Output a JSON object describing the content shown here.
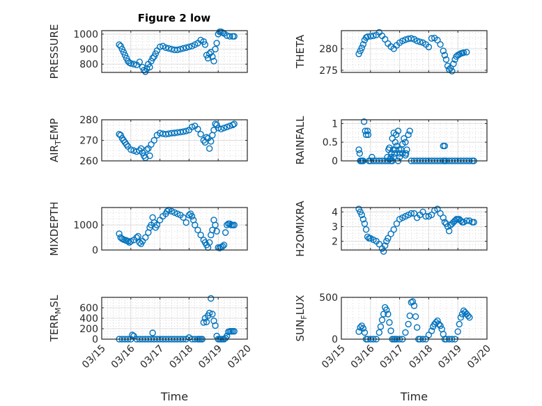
{
  "figure": {
    "title": "Figure 2 low",
    "marker_color": "#0072BD",
    "axis_color": "#262626",
    "grid_color": "#d9d9d9"
  },
  "chart_data": [
    {
      "type": "scatter",
      "id": "pressure",
      "title": "Figure 2 low",
      "ylabel": "PRESSURE",
      "xlabel": "",
      "xlim": [
        0,
        5
      ],
      "ylim": [
        745,
        1023
      ],
      "yticks": [
        800,
        900,
        1000
      ],
      "xticks": [
        "03/15",
        "03/16",
        "03/17",
        "03/18",
        "03/19",
        "03/20"
      ],
      "show_xticklabels": false,
      "grid": "major+minor",
      "x": [
        0.6,
        0.65,
        0.7,
        0.75,
        0.8,
        0.85,
        0.9,
        0.95,
        1.0,
        1.1,
        1.2,
        1.3,
        1.4,
        1.45,
        1.5,
        1.55,
        1.6,
        1.65,
        1.7,
        1.75,
        1.8,
        1.85,
        1.9,
        2.0,
        2.1,
        2.2,
        2.3,
        2.4,
        2.5,
        2.6,
        2.7,
        2.8,
        2.9,
        3.0,
        3.1,
        3.2,
        3.3,
        3.4,
        3.5,
        3.55,
        3.6,
        3.65,
        3.7,
        3.75,
        3.8,
        3.85,
        3.9,
        3.95,
        4.0,
        4.05,
        4.1,
        4.15,
        4.2,
        4.3,
        4.4,
        4.5,
        4.55
      ],
      "y": [
        930,
        920,
        900,
        880,
        860,
        840,
        820,
        810,
        805,
        800,
        795,
        815,
        780,
        760,
        750,
        770,
        800,
        780,
        820,
        840,
        850,
        870,
        890,
        915,
        920,
        910,
        905,
        900,
        895,
        895,
        900,
        905,
        910,
        915,
        920,
        930,
        940,
        960,
        950,
        930,
        860,
        840,
        870,
        880,
        850,
        820,
        900,
        940,
        1000,
        1015,
        1015,
        1010,
        1005,
        990,
        985,
        985,
        985
      ]
    },
    {
      "type": "scatter",
      "id": "theta",
      "ylabel": "THETA",
      "xlabel": "",
      "xlim": [
        0,
        5
      ],
      "ylim": [
        274.5,
        284.2
      ],
      "yticks": [
        275,
        280
      ],
      "xticks": [
        "03/15",
        "03/16",
        "03/17",
        "03/18",
        "03/19",
        "03/20"
      ],
      "show_xticklabels": false,
      "grid": "major+minor",
      "x": [
        0.6,
        0.65,
        0.7,
        0.75,
        0.8,
        0.85,
        0.9,
        1.0,
        1.1,
        1.2,
        1.3,
        1.4,
        1.5,
        1.6,
        1.7,
        1.8,
        1.9,
        2.0,
        2.1,
        2.2,
        2.3,
        2.4,
        2.5,
        2.6,
        2.7,
        2.8,
        2.9,
        3.0,
        3.1,
        3.2,
        3.3,
        3.4,
        3.5,
        3.55,
        3.6,
        3.65,
        3.7,
        3.75,
        3.8,
        3.85,
        3.9,
        3.95,
        4.0,
        4.05,
        4.1,
        4.15,
        4.2,
        4.3
      ],
      "y": [
        278.8,
        279.5,
        280.2,
        281,
        282,
        282.6,
        282.8,
        282.9,
        283.0,
        283.2,
        283.8,
        283.0,
        282.2,
        281.2,
        280.5,
        280.0,
        280.8,
        281.4,
        281.8,
        282.1,
        282.3,
        282.4,
        282.2,
        281.8,
        281.6,
        281.4,
        281.0,
        280.4,
        282.4,
        282.5,
        282.0,
        281.0,
        279.5,
        278.5,
        277.5,
        276.0,
        275.2,
        275.5,
        274.8,
        276.5,
        277.5,
        278.2,
        278.5,
        278.7,
        278.9,
        279.0,
        279.1,
        279.2
      ]
    },
    {
      "type": "scatter",
      "id": "air_temp",
      "ylabel": "AIR_TEMP",
      "xlabel": "",
      "xlim": [
        0,
        5
      ],
      "ylim": [
        260,
        280
      ],
      "yticks": [
        260,
        270,
        280
      ],
      "xticks": [
        "03/15",
        "03/16",
        "03/17",
        "03/18",
        "03/19",
        "03/20"
      ],
      "show_xticklabels": false,
      "grid": "major+minor",
      "x": [
        0.6,
        0.65,
        0.7,
        0.75,
        0.8,
        0.85,
        0.9,
        1.0,
        1.1,
        1.2,
        1.3,
        1.35,
        1.4,
        1.45,
        1.5,
        1.55,
        1.6,
        1.65,
        1.7,
        1.8,
        1.9,
        2.0,
        2.1,
        2.2,
        2.3,
        2.4,
        2.5,
        2.6,
        2.7,
        2.8,
        2.9,
        3.0,
        3.1,
        3.2,
        3.3,
        3.4,
        3.5,
        3.55,
        3.6,
        3.65,
        3.7,
        3.75,
        3.8,
        3.85,
        3.9,
        3.95,
        4.0,
        4.1,
        4.2,
        4.3,
        4.4,
        4.5,
        4.55
      ],
      "y": [
        273,
        272.5,
        271,
        270,
        269,
        268,
        267,
        265.5,
        265,
        264.5,
        265,
        266,
        264,
        262.5,
        261.5,
        265.5,
        266,
        262.5,
        268,
        270,
        272.5,
        273.5,
        273.2,
        273,
        273.2,
        273.5,
        273.6,
        273.8,
        274,
        274.2,
        274.5,
        275,
        276.5,
        277,
        275.5,
        273,
        270,
        269,
        271.5,
        271,
        266,
        269.5,
        272.5,
        275,
        278,
        277.5,
        276,
        275.5,
        276,
        276.5,
        277,
        277.5,
        278
      ]
    },
    {
      "type": "scatter",
      "id": "rainfall",
      "ylabel": "RAINFALL",
      "xlabel": "",
      "xlim": [
        0,
        5
      ],
      "ylim": [
        0,
        1.1
      ],
      "yticks": [
        0,
        0.5,
        1
      ],
      "xticks": [
        "03/15",
        "03/16",
        "03/17",
        "03/18",
        "03/19",
        "03/20"
      ],
      "show_xticklabels": false,
      "grid": "major+minor",
      "x": [
        0.6,
        0.63,
        0.65,
        0.68,
        0.72,
        0.75,
        0.78,
        0.82,
        0.85,
        0.9,
        0.92,
        0.95,
        1.0,
        1.05,
        1.1,
        1.2,
        1.3,
        1.4,
        1.5,
        1.6,
        1.7,
        1.75,
        1.8,
        1.85,
        1.9,
        1.95,
        2.0,
        2.05,
        2.1,
        2.15,
        2.2,
        2.25,
        2.3,
        2.35,
        2.4,
        2.5,
        2.6,
        2.7,
        2.8,
        2.9,
        3.0,
        3.1,
        3.2,
        3.3,
        3.4,
        3.5,
        3.55,
        3.6,
        3.7,
        3.8,
        3.9,
        4.0,
        4.1,
        4.2,
        4.3,
        4.4,
        4.5,
        4.55,
        1.58,
        1.62,
        1.65,
        1.68,
        1.7,
        1.72,
        1.75,
        1.78,
        1.8,
        1.83,
        1.85,
        1.88,
        1.95,
        1.98,
        2.0,
        2.1,
        2.2,
        2.22,
        3.5,
        3.55
      ],
      "y": [
        0.3,
        0.2,
        0,
        0,
        0,
        0,
        1.05,
        0.8,
        0.7,
        0.8,
        0.7,
        0,
        0,
        0.1,
        0,
        0,
        0,
        0,
        0,
        0,
        0.1,
        0,
        0.1,
        0.3,
        0.4,
        0,
        0.1,
        0.3,
        0.45,
        0.6,
        0.5,
        0.3,
        0.7,
        0.8,
        0,
        0,
        0,
        0,
        0,
        0,
        0,
        0,
        0,
        0,
        0,
        0,
        0,
        0,
        0,
        0,
        0,
        0,
        0,
        0,
        0,
        0,
        0,
        0,
        0.1,
        0.3,
        0.35,
        0.05,
        0,
        0.2,
        0.6,
        0.3,
        0.75,
        0.2,
        0.5,
        0.7,
        0.8,
        0.3,
        0.2,
        0.2,
        0.15,
        0.2,
        0.4,
        0.4
      ]
    },
    {
      "type": "scatter",
      "id": "mixdepth",
      "ylabel": "MIXDEPTH",
      "xlabel": "",
      "xlim": [
        0,
        5
      ],
      "ylim": [
        0,
        1700
      ],
      "yticks": [
        0,
        1000
      ],
      "xticks": [
        "03/15",
        "03/16",
        "03/17",
        "03/18",
        "03/19",
        "03/20"
      ],
      "show_xticklabels": false,
      "grid": "major+minor",
      "x": [
        0.6,
        0.65,
        0.7,
        0.75,
        0.8,
        0.85,
        0.9,
        0.95,
        1.0,
        1.1,
        1.2,
        1.25,
        1.3,
        1.35,
        1.4,
        1.5,
        1.6,
        1.65,
        1.7,
        1.75,
        1.8,
        1.85,
        1.9,
        2.0,
        2.1,
        2.2,
        2.25,
        2.3,
        2.4,
        2.5,
        2.6,
        2.7,
        2.8,
        2.9,
        3.0,
        3.05,
        3.1,
        3.15,
        3.2,
        3.3,
        3.4,
        3.5,
        3.55,
        3.6,
        3.65,
        3.7,
        3.75,
        3.8,
        3.85,
        3.9,
        3.95,
        4.0,
        4.05,
        4.1,
        4.15,
        4.2,
        4.25,
        4.3,
        4.35,
        4.4,
        4.45,
        4.5,
        4.55
      ],
      "y": [
        650,
        500,
        450,
        420,
        400,
        380,
        350,
        300,
        350,
        400,
        500,
        550,
        300,
        250,
        350,
        500,
        700,
        900,
        1000,
        1300,
        1100,
        900,
        1000,
        1200,
        1350,
        1450,
        1550,
        1600,
        1550,
        1500,
        1450,
        1400,
        1300,
        1100,
        1400,
        1450,
        1350,
        1200,
        1000,
        800,
        600,
        400,
        300,
        200,
        100,
        300,
        600,
        800,
        1200,
        1000,
        750,
        100,
        80,
        120,
        150,
        200,
        700,
        1000,
        1050,
        1050,
        1000,
        1000,
        1000
      ]
    },
    {
      "type": "scatter",
      "id": "h2omixra",
      "ylabel": "H2OMIXRA",
      "xlabel": "",
      "xlim": [
        0,
        5
      ],
      "ylim": [
        1.4,
        4.3
      ],
      "yticks": [
        2,
        3,
        4
      ],
      "xticks": [
        "03/15",
        "03/16",
        "03/17",
        "03/18",
        "03/19",
        "03/20"
      ],
      "show_xticklabels": false,
      "grid": "major+minor",
      "x": [
        0.6,
        0.65,
        0.7,
        0.75,
        0.8,
        0.85,
        0.9,
        0.95,
        1.0,
        1.1,
        1.2,
        1.3,
        1.4,
        1.45,
        1.5,
        1.55,
        1.6,
        1.7,
        1.8,
        1.9,
        2.0,
        2.1,
        2.2,
        2.3,
        2.4,
        2.5,
        2.6,
        2.7,
        2.8,
        2.9,
        3.0,
        3.1,
        3.2,
        3.3,
        3.4,
        3.5,
        3.55,
        3.6,
        3.65,
        3.7,
        3.75,
        3.8,
        3.85,
        3.9,
        3.95,
        4.0,
        4.05,
        4.1,
        4.15,
        4.2,
        4.3,
        4.4,
        4.5,
        4.55
      ],
      "y": [
        4.2,
        4.0,
        3.8,
        3.5,
        3.2,
        2.8,
        2.3,
        2.2,
        2.2,
        2.1,
        2.0,
        1.8,
        1.5,
        1.3,
        1.7,
        2.0,
        2.2,
        2.5,
        2.8,
        3.2,
        3.5,
        3.6,
        3.7,
        3.8,
        3.9,
        3.9,
        3.6,
        3.8,
        4.0,
        3.7,
        3.7,
        3.8,
        4.1,
        4.2,
        3.9,
        3.6,
        3.3,
        3.2,
        3.0,
        2.7,
        3.1,
        3.2,
        3.3,
        3.4,
        3.5,
        3.5,
        3.5,
        3.4,
        3.3,
        3.3,
        3.4,
        3.4,
        3.3,
        3.3
      ]
    },
    {
      "type": "scatter",
      "id": "terr_msl",
      "ylabel": "TERR_MSL",
      "xlabel": "Time",
      "xlim": [
        0,
        5
      ],
      "ylim": [
        0,
        800
      ],
      "yticks": [
        0,
        200,
        400,
        600
      ],
      "xticks": [
        "03/15",
        "03/16",
        "03/17",
        "03/18",
        "03/19",
        "03/20"
      ],
      "show_xticklabels": true,
      "grid": "major+minor",
      "x": [
        0.6,
        0.7,
        0.8,
        0.9,
        1.0,
        1.05,
        1.1,
        1.2,
        1.3,
        1.4,
        1.5,
        1.6,
        1.7,
        1.75,
        1.8,
        1.9,
        2.0,
        2.1,
        2.2,
        2.3,
        2.4,
        2.5,
        2.6,
        2.7,
        2.8,
        2.9,
        3.0,
        3.1,
        3.2,
        3.3,
        3.35,
        3.4,
        3.45,
        3.5,
        3.55,
        3.6,
        3.65,
        3.7,
        3.75,
        3.8,
        3.85,
        3.9,
        3.95,
        4.0,
        4.05,
        4.1,
        4.15,
        4.2,
        4.25,
        4.3,
        4.35,
        4.4,
        4.45,
        4.5,
        4.55
      ],
      "y": [
        0,
        0,
        0,
        0,
        0,
        80,
        60,
        0,
        0,
        0,
        0,
        0,
        0,
        120,
        0,
        0,
        0,
        0,
        0,
        0,
        0,
        0,
        0,
        0,
        0,
        0,
        30,
        0,
        0,
        0,
        0,
        0,
        0,
        320,
        400,
        330,
        450,
        500,
        780,
        480,
        350,
        260,
        60,
        0,
        0,
        0,
        0,
        0,
        20,
        60,
        140,
        150,
        150,
        150,
        150
      ]
    },
    {
      "type": "scatter",
      "id": "sun_flux",
      "ylabel": "SUN_FLUX",
      "xlabel": "Time",
      "xlim": [
        0,
        5
      ],
      "ylim": [
        0,
        500
      ],
      "yticks": [
        0,
        500
      ],
      "xticks": [
        "03/15",
        "03/16",
        "03/17",
        "03/18",
        "03/19",
        "03/20"
      ],
      "show_xticklabels": true,
      "grid": "major+minor",
      "x": [
        0.6,
        0.65,
        0.7,
        0.75,
        0.8,
        0.85,
        0.9,
        1.0,
        1.1,
        1.2,
        1.3,
        1.35,
        1.4,
        1.45,
        1.5,
        1.55,
        1.6,
        1.65,
        1.7,
        1.75,
        1.8,
        1.85,
        1.9,
        2.0,
        2.1,
        2.2,
        2.3,
        2.35,
        2.4,
        2.45,
        2.5,
        2.55,
        2.6,
        2.65,
        2.7,
        2.8,
        2.9,
        3.0,
        3.1,
        3.15,
        3.2,
        3.25,
        3.3,
        3.35,
        3.4,
        3.45,
        3.5,
        3.55,
        3.6,
        3.7,
        3.8,
        3.9,
        4.0,
        4.05,
        4.1,
        4.15,
        4.2,
        4.25,
        4.3,
        4.35,
        4.4
      ],
      "y": [
        90,
        140,
        160,
        130,
        80,
        0,
        0,
        0,
        0,
        0,
        80,
        150,
        230,
        300,
        380,
        350,
        300,
        200,
        100,
        0,
        0,
        0,
        0,
        0,
        0,
        80,
        180,
        280,
        440,
        450,
        400,
        270,
        140,
        0,
        0,
        0,
        0,
        50,
        100,
        150,
        180,
        200,
        220,
        180,
        160,
        120,
        60,
        0,
        0,
        0,
        0,
        0,
        90,
        180,
        260,
        300,
        340,
        320,
        300,
        280,
        260
      ]
    }
  ]
}
